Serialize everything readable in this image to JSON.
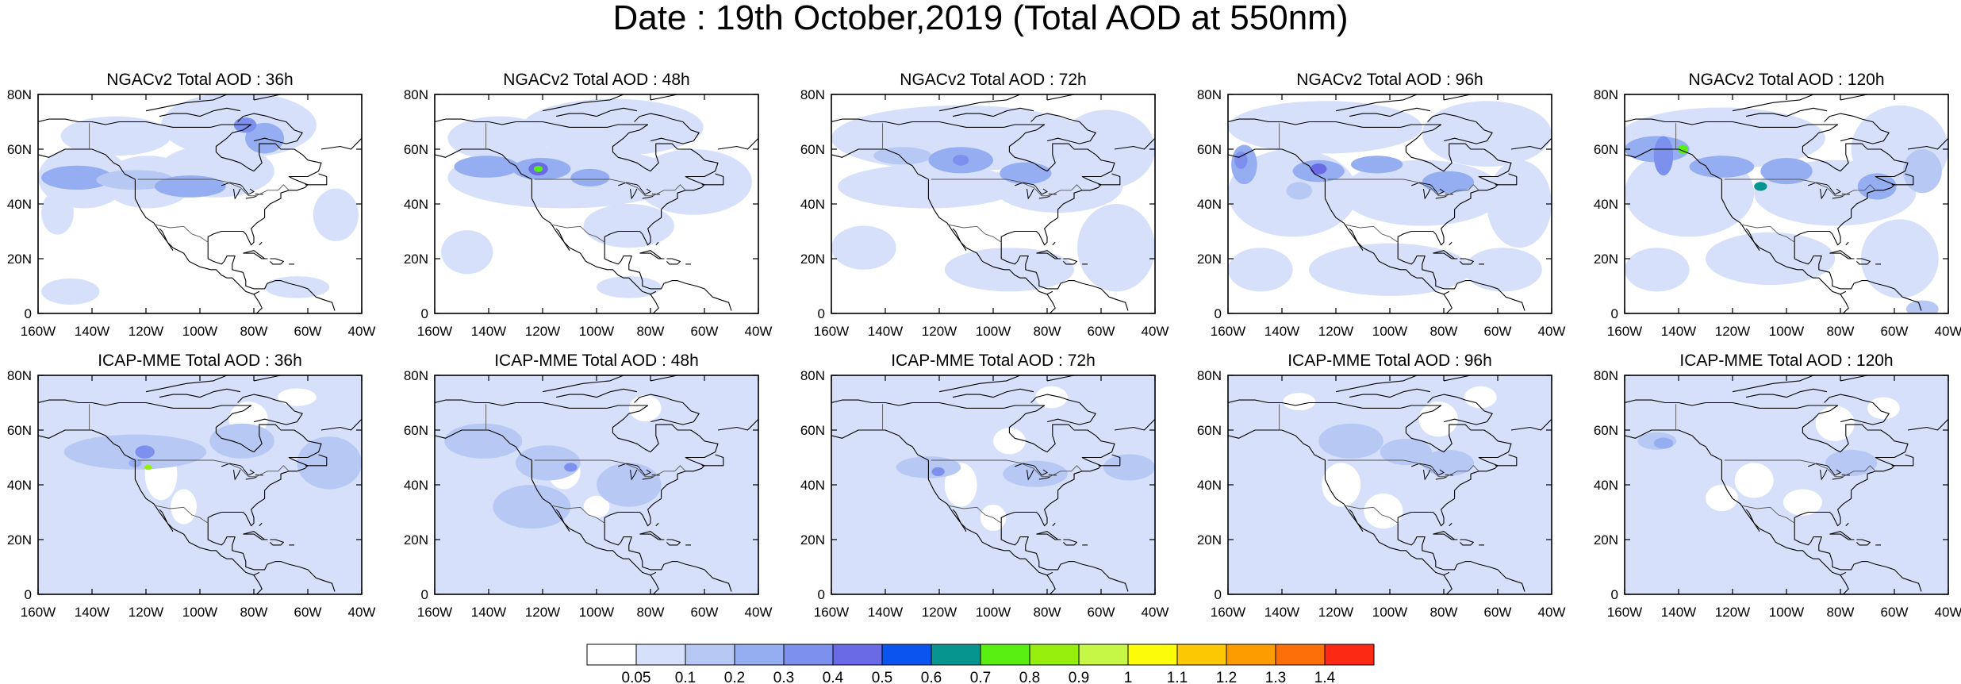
{
  "figure": {
    "title": "Date : 19th October,2019 (Total AOD at 550nm)"
  },
  "axes": {
    "x_ticks": [
      "160W",
      "140W",
      "120W",
      "100W",
      "80W",
      "60W",
      "40W"
    ],
    "y_ticks": [
      "80N",
      "60N",
      "40N",
      "20N",
      "0"
    ]
  },
  "panels": [
    {
      "title": "NGACv2 Total AOD : 36h",
      "model": "NGACv2",
      "lead_hours": 36
    },
    {
      "title": "NGACv2 Total AOD : 48h",
      "model": "NGACv2",
      "lead_hours": 48
    },
    {
      "title": "NGACv2 Total AOD : 72h",
      "model": "NGACv2",
      "lead_hours": 72
    },
    {
      "title": "NGACv2 Total AOD : 96h",
      "model": "NGACv2",
      "lead_hours": 96
    },
    {
      "title": "NGACv2 Total AOD : 120h",
      "model": "NGACv2",
      "lead_hours": 120
    },
    {
      "title": "ICAP-MME Total AOD : 36h",
      "model": "ICAP-MME",
      "lead_hours": 36
    },
    {
      "title": "ICAP-MME Total AOD : 48h",
      "model": "ICAP-MME",
      "lead_hours": 48
    },
    {
      "title": "ICAP-MME Total AOD : 72h",
      "model": "ICAP-MME",
      "lead_hours": 72
    },
    {
      "title": "ICAP-MME Total AOD : 96h",
      "model": "ICAP-MME",
      "lead_hours": 96
    },
    {
      "title": "ICAP-MME Total AOD : 120h",
      "model": "ICAP-MME",
      "lead_hours": 120
    }
  ],
  "colorbar": {
    "labels": [
      "0.05",
      "0.1",
      "0.2",
      "0.3",
      "0.4",
      "0.5",
      "0.6",
      "0.7",
      "0.8",
      "0.9",
      "1",
      "1.1",
      "1.2",
      "1.3",
      "1.4"
    ],
    "colors": [
      "#ffffff",
      "#d6e0fa",
      "#b8c8f5",
      "#95aef2",
      "#7d90ee",
      "#6a6ae6",
      "#0a55f0",
      "#06958f",
      "#58ee10",
      "#96ee0c",
      "#c6f646",
      "#fcfc08",
      "#fcc804",
      "#fc9c00",
      "#fc6e08",
      "#fc2a14"
    ]
  },
  "map_style": {
    "land_outline": "#000000",
    "border_line": "#555555"
  }
}
